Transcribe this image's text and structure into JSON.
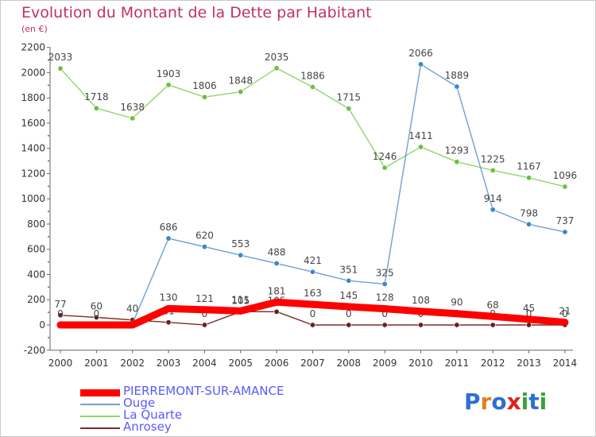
{
  "title": "Evolution du Montant de la Dette par Habitant",
  "subtitle": "(en €)",
  "logo": {
    "text": "Proxiti",
    "letters": [
      "P",
      "r",
      "o",
      "x",
      "i",
      "t",
      "i"
    ],
    "colors": [
      "#2f6fd0",
      "#e08020",
      "#2f6fd0",
      "#e02020",
      "#3aa03a",
      "#2f6fd0",
      "#3aa03a"
    ]
  },
  "chart_data": {
    "type": "line",
    "x": [
      "2000",
      "2001",
      "2002",
      "2003",
      "2004",
      "2005",
      "2006",
      "2007",
      "2008",
      "2009",
      "2010",
      "2011",
      "2012",
      "2013",
      "2014"
    ],
    "yticks": [
      "-200",
      "0",
      "200",
      "400",
      "600",
      "800",
      "1000",
      "1200",
      "1400",
      "1600",
      "1800",
      "2000",
      "2200"
    ],
    "ylim": [
      -200,
      2200
    ],
    "grid": false,
    "legend_position": "bottom-left",
    "series": [
      {
        "name": "PIERREMONT-SUR-AMANCE",
        "color": "#ff0000",
        "marker": "#ff0000",
        "values": [
          0,
          0,
          0,
          130,
          121,
          111,
          181,
          163,
          145,
          128,
          108,
          90,
          68,
          45,
          21
        ],
        "labels": [
          "",
          "",
          "",
          "130",
          "121",
          "111",
          "181",
          "163",
          "145",
          "128",
          "108",
          "90",
          "68",
          "45",
          "21"
        ]
      },
      {
        "name": "Ouge",
        "color": "#6ea0d2",
        "marker": "#3b86c8",
        "values": [
          0,
          0,
          10,
          686,
          620,
          553,
          488,
          421,
          351,
          325,
          2066,
          1889,
          914,
          798,
          737
        ],
        "labels": [
          "0",
          "0",
          "",
          "686",
          "620",
          "553",
          "488",
          "421",
          "351",
          "325",
          "2066",
          "1889",
          "914",
          "798",
          "737"
        ]
      },
      {
        "name": "La Quarte",
        "color": "#8ed66c",
        "marker": "#6cc040",
        "values": [
          2033,
          1718,
          1638,
          1903,
          1806,
          1848,
          2035,
          1886,
          1715,
          1246,
          1411,
          1293,
          1225,
          1167,
          1096
        ],
        "labels": [
          "2033",
          "1718",
          "1638",
          "1903",
          "1806",
          "1848",
          "2035",
          "1886",
          "1715",
          "1246",
          "1411",
          "1293",
          "1225",
          "1167",
          "1096"
        ]
      },
      {
        "name": "Anrosey",
        "color": "#7a2a2a",
        "marker": "#6a1e1e",
        "values": [
          77,
          60,
          40,
          21,
          0,
          105,
          105,
          0,
          0,
          0,
          0,
          0,
          0,
          0,
          0
        ],
        "labels": [
          "77",
          "60",
          "40",
          "21",
          "0",
          "105",
          "105",
          "0",
          "0",
          "0",
          "0",
          "0",
          "0",
          "0",
          "0"
        ]
      }
    ]
  }
}
